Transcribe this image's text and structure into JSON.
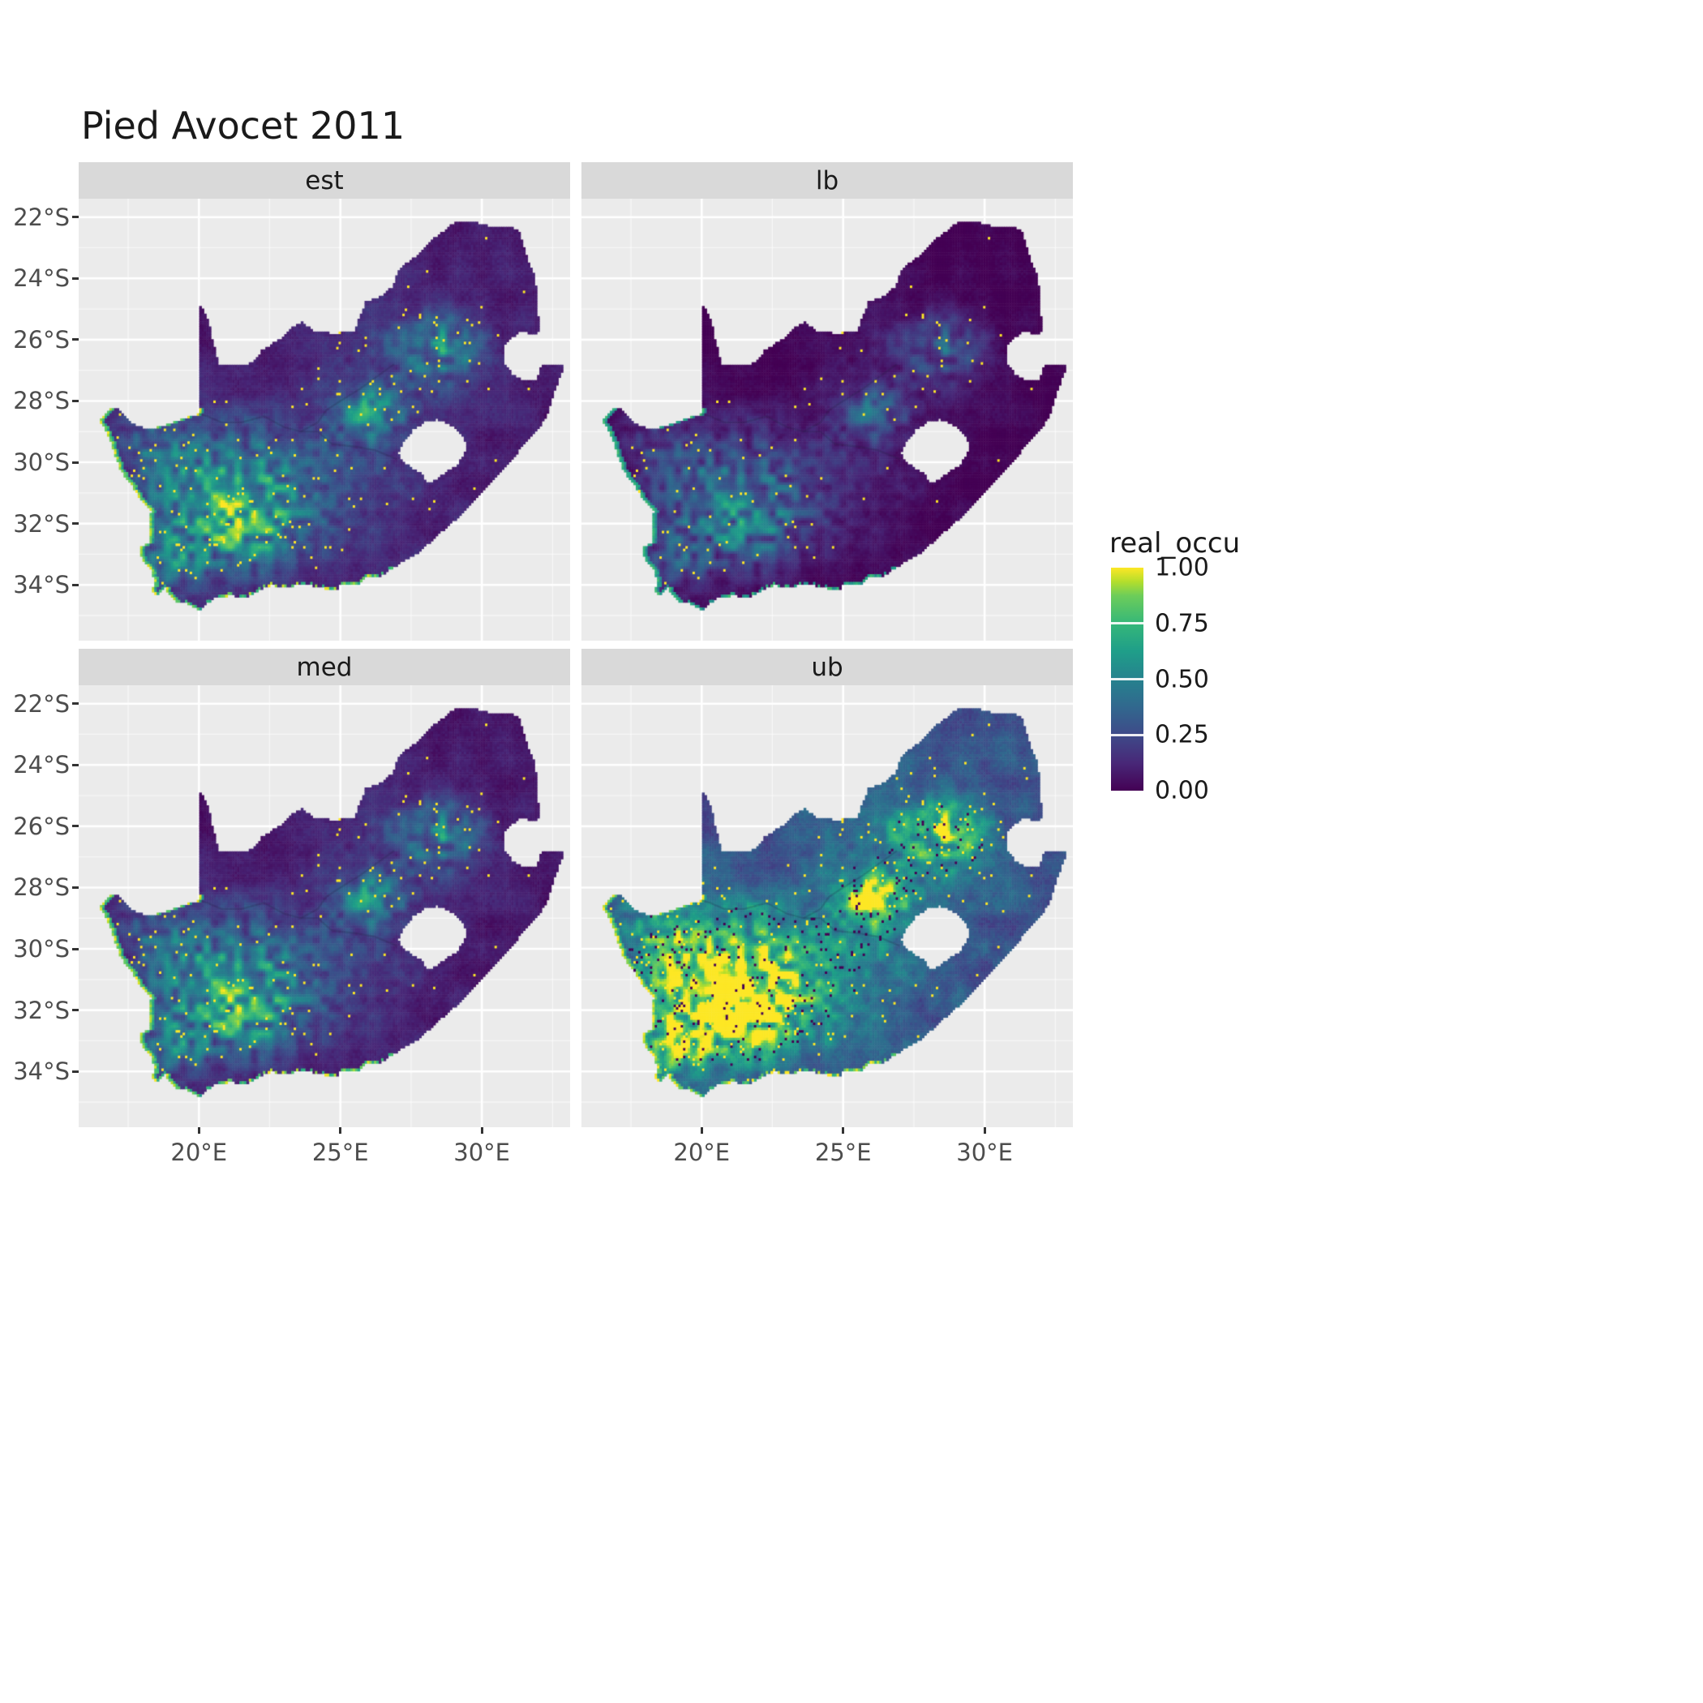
{
  "title": "Pied Avocet 2011",
  "facets": [
    {
      "key": "est",
      "label": "est"
    },
    {
      "key": "lb",
      "label": "lb"
    },
    {
      "key": "med",
      "label": "med"
    },
    {
      "key": "ub",
      "label": "ub"
    }
  ],
  "x_axis": {
    "labels": [
      "20°E",
      "25°E",
      "30°E"
    ],
    "values": [
      20,
      25,
      30
    ]
  },
  "y_axis": {
    "labels": [
      "22°S",
      "24°S",
      "26°S",
      "28°S",
      "30°S",
      "32°S",
      "34°S"
    ],
    "values": [
      -22,
      -24,
      -26,
      -28,
      -30,
      -32,
      -34
    ]
  },
  "legend": {
    "title": "real_occu",
    "labels": [
      "1.00",
      "0.75",
      "0.50",
      "0.25",
      "0.00"
    ],
    "values": [
      1,
      0.75,
      0.5,
      0.25,
      0
    ]
  },
  "colors": {
    "background": "#FFFFFF",
    "panel_bg": "#EBEBEB",
    "strip_bg": "#D9D9D9",
    "strip_text": "#1A1A1A",
    "grid_major": "#FFFFFF",
    "axis_text": "#4D4D4D",
    "tick_mark": "#333333",
    "title_text": "#1A1A1A",
    "viridis_colors": [
      "#440154",
      "#482878",
      "#3E4A89",
      "#31688E",
      "#26828E",
      "#1F9E89",
      "#35B779",
      "#6DCD59",
      "#B4DE2C",
      "#FDE725"
    ],
    "viridis_positions": [
      0,
      0.125,
      0.25,
      0.375,
      0.5,
      0.625,
      0.75,
      0.875,
      0.9375,
      1
    ]
  },
  "chart_data": {
    "type": "heatmap",
    "subtype": "faceted-raster-occupancy-map",
    "title": "Pied Avocet 2011",
    "region": "South Africa",
    "facets": [
      "est",
      "lb",
      "med",
      "ub"
    ],
    "variable": "real_occu",
    "value_range": [
      0,
      1
    ],
    "colormap": "viridis",
    "legend_position": "right",
    "grid": true,
    "x_range": [
      15.75,
      33.12
    ],
    "y_range": [
      -35.82,
      -21.4
    ],
    "x_ticks_deg": [
      20,
      25,
      30
    ],
    "y_ticks_deg": [
      -22,
      -24,
      -26,
      -28,
      -30,
      -32,
      -34
    ],
    "cell_size_deg": 0.0833,
    "outline": [
      [
        20.0,
        -24.77
      ],
      [
        20.15,
        -25.05
      ],
      [
        20.35,
        -25.45
      ],
      [
        20.45,
        -25.9
      ],
      [
        20.6,
        -26.4
      ],
      [
        20.7,
        -26.85
      ],
      [
        20.95,
        -26.8
      ],
      [
        21.4,
        -26.85
      ],
      [
        21.7,
        -26.85
      ],
      [
        22.05,
        -26.6
      ],
      [
        22.2,
        -26.35
      ],
      [
        22.55,
        -26.15
      ],
      [
        22.9,
        -25.95
      ],
      [
        23.25,
        -25.6
      ],
      [
        23.65,
        -25.4
      ],
      [
        24.0,
        -25.7
      ],
      [
        24.4,
        -25.75
      ],
      [
        24.8,
        -25.8
      ],
      [
        25.1,
        -25.75
      ],
      [
        25.5,
        -25.7
      ],
      [
        25.6,
        -25.45
      ],
      [
        25.75,
        -25.1
      ],
      [
        25.9,
        -24.75
      ],
      [
        26.4,
        -24.6
      ],
      [
        26.85,
        -24.25
      ],
      [
        27.1,
        -23.65
      ],
      [
        27.5,
        -23.4
      ],
      [
        27.95,
        -23.05
      ],
      [
        28.3,
        -22.7
      ],
      [
        28.85,
        -22.3
      ],
      [
        29.15,
        -22.15
      ],
      [
        29.7,
        -22.15
      ],
      [
        30.3,
        -22.3
      ],
      [
        30.85,
        -22.3
      ],
      [
        31.3,
        -22.4
      ],
      [
        31.55,
        -23.2
      ],
      [
        31.85,
        -23.9
      ],
      [
        31.95,
        -24.4
      ],
      [
        31.98,
        -25.1
      ],
      [
        32.02,
        -25.6
      ],
      [
        31.95,
        -25.85
      ],
      [
        31.4,
        -25.72
      ],
      [
        31.1,
        -25.9
      ],
      [
        30.8,
        -26.15
      ],
      [
        30.78,
        -26.5
      ],
      [
        30.82,
        -26.8
      ],
      [
        31.05,
        -27.1
      ],
      [
        31.4,
        -27.3
      ],
      [
        31.95,
        -27.32
      ],
      [
        32.1,
        -26.85
      ],
      [
        32.55,
        -26.85
      ],
      [
        32.9,
        -26.86
      ],
      [
        32.65,
        -27.5
      ],
      [
        32.45,
        -28.0
      ],
      [
        32.3,
        -28.5
      ],
      [
        32.0,
        -28.9
      ],
      [
        31.6,
        -29.3
      ],
      [
        31.1,
        -29.85
      ],
      [
        30.6,
        -30.4
      ],
      [
        30.0,
        -31.0
      ],
      [
        29.45,
        -31.55
      ],
      [
        28.9,
        -32.0
      ],
      [
        28.3,
        -32.5
      ],
      [
        27.7,
        -33.0
      ],
      [
        27.1,
        -33.3
      ],
      [
        26.45,
        -33.7
      ],
      [
        25.9,
        -33.75
      ],
      [
        25.65,
        -34.0
      ],
      [
        25.0,
        -33.95
      ],
      [
        24.85,
        -34.2
      ],
      [
        24.2,
        -34.05
      ],
      [
        23.6,
        -33.98
      ],
      [
        23.0,
        -34.1
      ],
      [
        22.55,
        -34.0
      ],
      [
        22.15,
        -34.18
      ],
      [
        21.7,
        -34.4
      ],
      [
        21.1,
        -34.35
      ],
      [
        20.5,
        -34.45
      ],
      [
        20.0,
        -34.82
      ],
      [
        19.6,
        -34.6
      ],
      [
        19.3,
        -34.6
      ],
      [
        18.95,
        -34.35
      ],
      [
        18.8,
        -34.1
      ],
      [
        18.45,
        -34.35
      ],
      [
        18.33,
        -34.2
      ],
      [
        18.45,
        -33.9
      ],
      [
        18.3,
        -33.5
      ],
      [
        17.98,
        -33.15
      ],
      [
        17.88,
        -32.8
      ],
      [
        18.3,
        -32.6
      ],
      [
        18.25,
        -32.05
      ],
      [
        18.3,
        -31.6
      ],
      [
        17.9,
        -31.2
      ],
      [
        17.6,
        -30.7
      ],
      [
        17.25,
        -30.3
      ],
      [
        17.05,
        -29.85
      ],
      [
        16.9,
        -29.4
      ],
      [
        16.7,
        -28.95
      ],
      [
        16.45,
        -28.63
      ],
      [
        16.8,
        -28.3
      ],
      [
        17.1,
        -28.2
      ],
      [
        17.4,
        -28.55
      ],
      [
        17.7,
        -28.75
      ],
      [
        18.1,
        -28.9
      ],
      [
        18.6,
        -28.85
      ],
      [
        19.1,
        -28.7
      ],
      [
        19.45,
        -28.55
      ],
      [
        19.8,
        -28.5
      ],
      [
        19.99,
        -28.42
      ]
    ],
    "lesotho_hole": [
      [
        27.05,
        -29.65
      ],
      [
        27.3,
        -29.25
      ],
      [
        27.55,
        -28.95
      ],
      [
        27.95,
        -28.7
      ],
      [
        28.4,
        -28.6
      ],
      [
        28.75,
        -28.7
      ],
      [
        29.1,
        -28.9
      ],
      [
        29.35,
        -29.15
      ],
      [
        29.45,
        -29.45
      ],
      [
        29.35,
        -29.8
      ],
      [
        29.1,
        -30.1
      ],
      [
        28.7,
        -30.35
      ],
      [
        28.3,
        -30.6
      ],
      [
        28.05,
        -30.65
      ],
      [
        27.9,
        -30.4
      ],
      [
        27.6,
        -30.25
      ],
      [
        27.35,
        -30.05
      ],
      [
        27.1,
        -29.9
      ]
    ],
    "rivers": [
      [
        [
          27.0,
          -29.9
        ],
        [
          26.2,
          -29.6
        ],
        [
          25.6,
          -29.5
        ],
        [
          24.7,
          -29.4
        ],
        [
          24.2,
          -29.0
        ],
        [
          23.6,
          -29.0
        ],
        [
          23.0,
          -28.85
        ],
        [
          22.3,
          -28.5
        ],
        [
          21.5,
          -28.7
        ],
        [
          20.8,
          -28.7
        ],
        [
          20.3,
          -28.5
        ],
        [
          19.99,
          -28.42
        ]
      ],
      [
        [
          26.9,
          -26.8
        ],
        [
          26.3,
          -27.2
        ],
        [
          25.7,
          -27.6
        ],
        [
          25.0,
          -28.0
        ],
        [
          24.5,
          -28.3
        ],
        [
          24.2,
          -28.7
        ],
        [
          23.6,
          -29.0
        ]
      ]
    ],
    "hotspots": [
      {
        "x": 20.8,
        "y": -30.9,
        "sx": 1.7,
        "sy": 1.3,
        "a": 0.6
      },
      {
        "x": 21.7,
        "y": -32.4,
        "sx": 1.3,
        "sy": 0.9,
        "a": 0.45
      },
      {
        "x": 19.1,
        "y": -33.2,
        "sx": 0.75,
        "sy": 0.7,
        "a": 0.4
      },
      {
        "x": 26.1,
        "y": -28.4,
        "sx": 0.75,
        "sy": 0.6,
        "a": 0.5
      },
      {
        "x": 28.6,
        "y": -26.3,
        "sx": 0.95,
        "sy": 0.7,
        "a": 0.4
      },
      {
        "x": 24.5,
        "y": -30.5,
        "sx": 2.3,
        "sy": 1.7,
        "a": 0.2
      },
      {
        "x": 27.4,
        "y": -26.6,
        "sx": 1.9,
        "sy": 1.2,
        "a": 0.16
      },
      {
        "x": 18.4,
        "y": -29.5,
        "sx": 0.9,
        "sy": 1.2,
        "a": 0.25
      }
    ],
    "west_coast_high_band": true,
    "facet_transform": {
      "est": {
        "mul": 1.0,
        "add": 0.0,
        "coast": 1.0,
        "speck": 1.0
      },
      "lb": {
        "mul": 0.72,
        "add": -0.06,
        "coast": 0.8,
        "speck": 0.6
      },
      "med": {
        "mul": 0.95,
        "add": -0.01,
        "coast": 1.0,
        "speck": 0.9
      },
      "ub": {
        "mul": 1.5,
        "add": 0.1,
        "coast": 1.05,
        "speck": 1.6
      }
    }
  }
}
